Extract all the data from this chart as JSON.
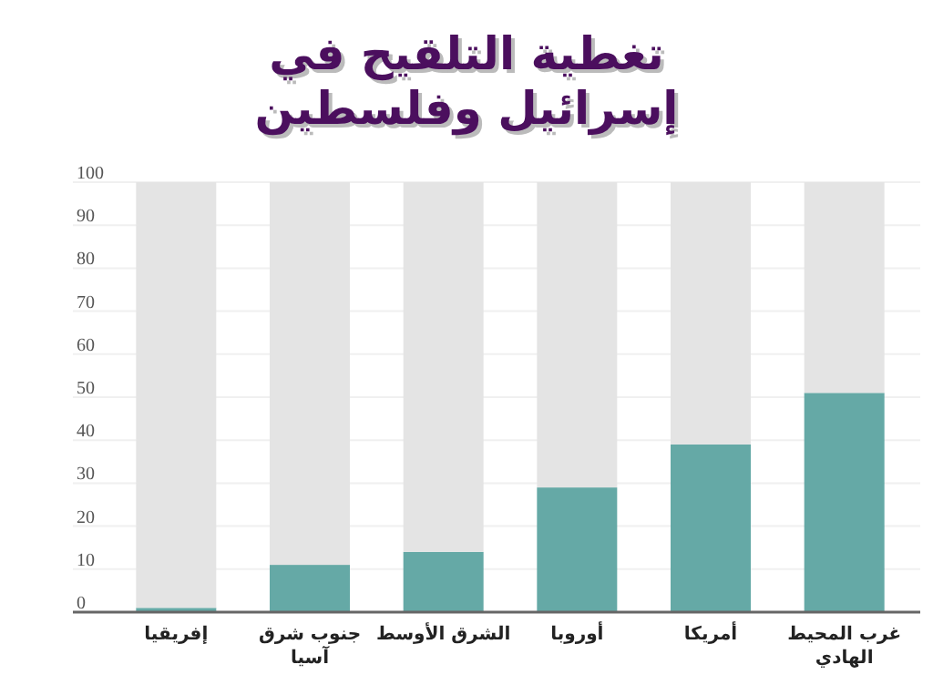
{
  "chart_data": {
    "type": "bar",
    "title": "تغطية التلقيح في\nإسرائيل وفلسطين",
    "categories": [
      "إفريقيا",
      "جنوب شرق\nآسيا",
      "الشرق الأوسط",
      "أوروبا",
      "أمريكا",
      "غرب المحيط\nالهادي"
    ],
    "series": [
      {
        "color": "#65a9a6",
        "values": [
          1,
          11,
          14,
          29,
          39,
          51
        ]
      },
      {
        "color": "#e4e4e4",
        "values": [
          99,
          89,
          86,
          71,
          61,
          49
        ]
      }
    ],
    "stacked": true,
    "ylim": [
      0,
      100
    ],
    "yticks": [
      0,
      10,
      20,
      30,
      40,
      50,
      60,
      70,
      80,
      90,
      100
    ],
    "grid": "y"
  }
}
